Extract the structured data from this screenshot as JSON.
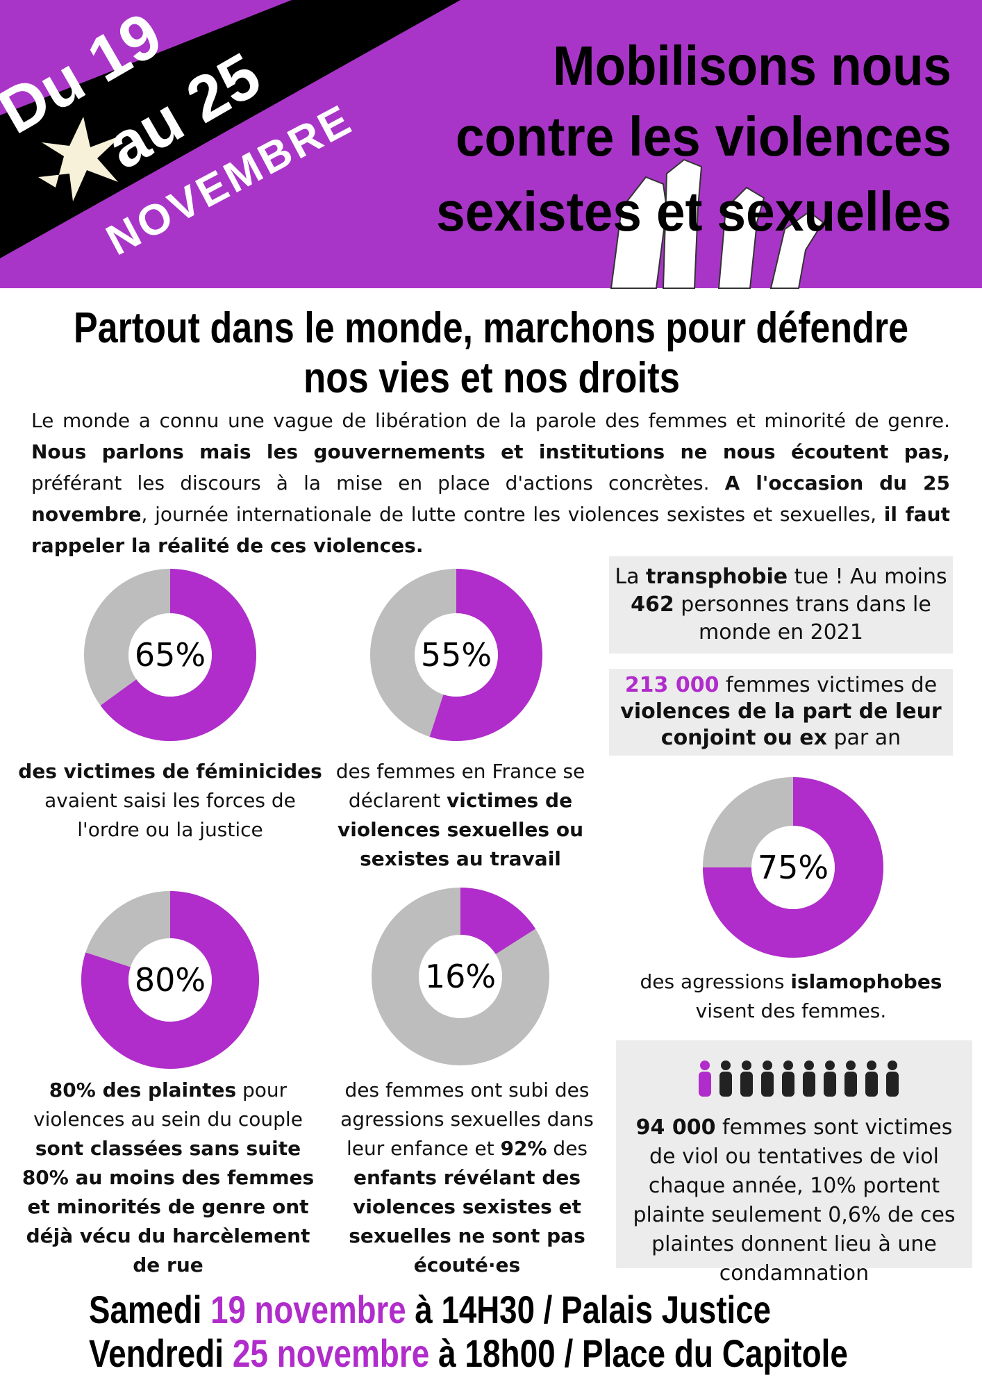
{
  "header": {
    "date_line1": "Du 19",
    "date_line2": "au 25",
    "month": "NOVEMBRE",
    "title_lines": [
      "Mobilisons nous",
      "contre les violences",
      "sexistes et sexuelles"
    ]
  },
  "headline": [
    "Partout dans le monde, marchons pour défendre",
    "nos vies et nos droits"
  ],
  "intro": [
    {
      "text": "Le monde a connu une vague de libération de la parole des femmes et minorité de genre. "
    },
    {
      "text": "Nous parlons mais les gouvernements et institutions ne nous écoutent pas,",
      "bold": true
    },
    {
      "text": " préférant les discours à la mise en place d'actions concrètes. "
    },
    {
      "text": "A l'occasion du 25 novembre",
      "bold": true
    },
    {
      "text": ", journée internationale de lutte contre les violences sexistes et sexuelles, "
    },
    {
      "text": "il faut rappeler la réalité de ces violences.",
      "bold": true
    }
  ],
  "colors": {
    "accent": "#b02ccb",
    "header": "#a935c8",
    "ring": "#bdbdbd",
    "box": "#ececec"
  },
  "donuts": [
    {
      "value": 65,
      "label": "65%",
      "caption": [
        {
          "text": "des victimes de féminicides",
          "bold": true
        },
        {
          "text": " avaient saisi les forces de l'ordre ou la justice"
        }
      ]
    },
    {
      "value": 55,
      "label": "55%",
      "caption": [
        {
          "text": "des femmes en France se déclarent "
        },
        {
          "text": "victimes de violences sexuelles ou sexistes au travail",
          "bold": true
        }
      ]
    },
    {
      "value": 75,
      "label": "75%",
      "caption": [
        {
          "text": "des agressions "
        },
        {
          "text": "islamophobes",
          "bold": true
        },
        {
          "text": " visent des femmes."
        }
      ]
    },
    {
      "value": 80,
      "label": "80%",
      "caption": [
        {
          "text": "80% des plaintes",
          "bold": true
        },
        {
          "text": " pour violences au sein du couple "
        },
        {
          "text": "sont classées sans suite 80% au moins des femmes et minorités de genre ont déjà vécu du harcèlement de rue",
          "bold": true
        }
      ]
    },
    {
      "value": 16,
      "label": "16%",
      "caption": [
        {
          "text": "des femmes ont subi des agressions sexuelles dans leur enfance et "
        },
        {
          "text": "92%",
          "bold": true
        },
        {
          "text": " des "
        },
        {
          "text": "enfants révélant des violences sexistes et sexuelles ne sont pas écouté·es",
          "bold": true
        }
      ]
    }
  ],
  "facts": [
    [
      {
        "text": "La "
      },
      {
        "text": "transphobie",
        "bold": true
      },
      {
        "text": " tue ! Au moins "
      },
      {
        "text": "462",
        "bold": true
      },
      {
        "text": " personnes trans dans le monde en 2021"
      }
    ],
    [
      {
        "text": "213 000",
        "bold": true,
        "accent": true
      },
      {
        "text": " femmes victimes de "
      },
      {
        "text": "violences de la part de leur conjoint ou ex",
        "bold": true
      },
      {
        "text": " par an"
      }
    ],
    [
      {
        "text": "94 000",
        "bold": true
      },
      {
        "text": " femmes sont victimes de viol ou tentatives de viol chaque année, 10% portent plainte seulement 0,6% de ces plaintes donnent lieu à une condamnation"
      }
    ]
  ],
  "events": [
    [
      {
        "text": "Samedi "
      },
      {
        "text": "19 novembre",
        "accent": true
      },
      {
        "text": " à 14H30 / Palais Justice"
      }
    ],
    [
      {
        "text": "Vendredi "
      },
      {
        "text": "25 novembre",
        "accent": true
      },
      {
        "text": " à 18h00 / Place du Capitole"
      }
    ]
  ]
}
